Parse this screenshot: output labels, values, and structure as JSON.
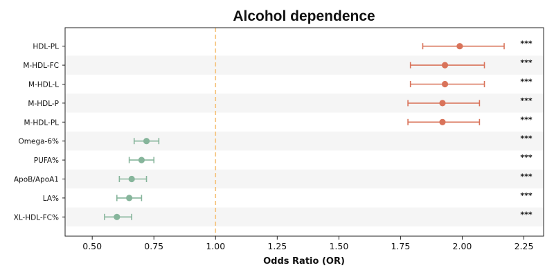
{
  "chart_data": {
    "type": "scatter",
    "subtype": "forest-plot",
    "title": "Alcohol dependence",
    "xlabel": "Odds Ratio (OR)",
    "xlim": [
      0.39,
      2.33
    ],
    "xticks": [
      0.5,
      0.75,
      1.0,
      1.25,
      1.5,
      1.75,
      2.0,
      2.25
    ],
    "xtick_labels": [
      "0.50",
      "0.75",
      "1.00",
      "1.25",
      "1.50",
      "1.75",
      "2.00",
      "2.25"
    ],
    "reference_line": 1.0,
    "reference_line_color": "#f5c27a",
    "colors": {
      "risk": "#d9735a",
      "protective": "#86b59b",
      "band": "#f5f5f5"
    },
    "grid": false,
    "rows": [
      {
        "label": "HDL-PL",
        "or": 1.99,
        "lower": 1.84,
        "upper": 2.17,
        "sig": "***"
      },
      {
        "label": "M-HDL-FC",
        "or": 1.93,
        "lower": 1.79,
        "upper": 2.09,
        "sig": "***"
      },
      {
        "label": "M-HDL-L",
        "or": 1.93,
        "lower": 1.79,
        "upper": 2.09,
        "sig": "***"
      },
      {
        "label": "M-HDL-P",
        "or": 1.92,
        "lower": 1.78,
        "upper": 2.07,
        "sig": "***"
      },
      {
        "label": "M-HDL-PL",
        "or": 1.92,
        "lower": 1.78,
        "upper": 2.07,
        "sig": "***"
      },
      {
        "label": "Omega-6%",
        "or": 0.72,
        "lower": 0.67,
        "upper": 0.77,
        "sig": "***"
      },
      {
        "label": "PUFA%",
        "or": 0.7,
        "lower": 0.65,
        "upper": 0.75,
        "sig": "***"
      },
      {
        "label": "ApoB/ApoA1",
        "or": 0.66,
        "lower": 0.61,
        "upper": 0.72,
        "sig": "***"
      },
      {
        "label": "LA%",
        "or": 0.65,
        "lower": 0.6,
        "upper": 0.7,
        "sig": "***"
      },
      {
        "label": "XL-HDL-FC%",
        "or": 0.6,
        "lower": 0.55,
        "upper": 0.66,
        "sig": "***"
      }
    ]
  }
}
